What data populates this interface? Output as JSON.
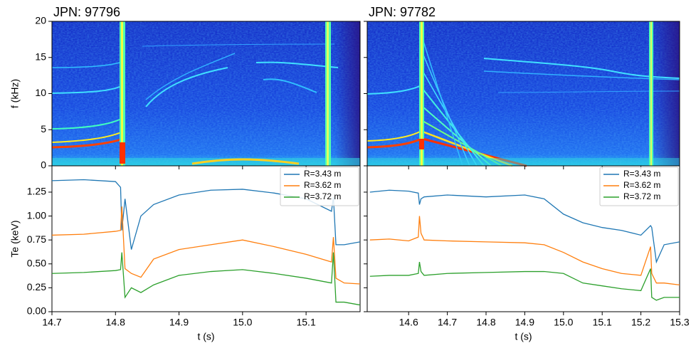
{
  "chart_data": [
    {
      "type": "line",
      "title": "JPN: 97796",
      "xlabel": "t (s)",
      "xlim": [
        14.7,
        15.185
      ],
      "xticks": [
        14.7,
        14.8,
        14.9,
        {
          "value": 15,
          "label": "15.0"
        },
        15.1
      ],
      "spectrogram": {
        "type": "spectrogram",
        "ylabel": "f (kHz)",
        "ylim": [
          0,
          20
        ],
        "yticks": [
          0,
          5,
          10,
          15,
          20
        ],
        "show_ytick_labels": true
      },
      "ylabel": "Te (keV)",
      "ylim": [
        0,
        1.525
      ],
      "show_ytick_labels": true,
      "yticks": [
        {
          "value": 0,
          "label": "0.00"
        },
        {
          "value": 0.25,
          "label": "0.25"
        },
        {
          "value": 0.5,
          "label": "0.50"
        },
        {
          "value": 0.75,
          "label": "0.75"
        },
        {
          "value": 1,
          "label": "1.00"
        },
        {
          "value": 1.25,
          "label": "1.25"
        }
      ],
      "legend": "upper right",
      "x": [
        14.7,
        14.75,
        14.8,
        14.808,
        14.81,
        14.815,
        14.825,
        14.84,
        14.86,
        14.9,
        14.95,
        15.0,
        15.05,
        15.1,
        15.14,
        15.143,
        15.147,
        15.16,
        15.185
      ],
      "series": [
        {
          "name": "R=3.43 m",
          "color": "#1f77b4",
          "values": [
            1.37,
            1.38,
            1.36,
            1.3,
            0.85,
            1.18,
            0.65,
            1.0,
            1.12,
            1.22,
            1.27,
            1.28,
            1.24,
            1.18,
            1.05,
            1.2,
            0.7,
            0.7,
            0.73
          ]
        },
        {
          "name": "R=3.62 m",
          "color": "#ff7f0e",
          "values": [
            0.8,
            0.81,
            0.84,
            0.85,
            1.1,
            0.45,
            0.4,
            0.36,
            0.55,
            0.65,
            0.7,
            0.75,
            0.68,
            0.6,
            0.52,
            0.78,
            0.35,
            0.3,
            0.29
          ]
        },
        {
          "name": "R=3.72 m",
          "color": "#2ca02c",
          "values": [
            0.4,
            0.41,
            0.43,
            0.44,
            0.62,
            0.15,
            0.25,
            0.2,
            0.28,
            0.38,
            0.42,
            0.44,
            0.4,
            0.35,
            0.3,
            0.62,
            0.1,
            0.1,
            0.07
          ]
        }
      ]
    },
    {
      "type": "line",
      "title": "JPN: 97782",
      "xlabel": "t (s)",
      "xlim": [
        14.493,
        15.3
      ],
      "xticks": [
        14.6,
        14.7,
        14.8,
        14.9,
        {
          "value": 15,
          "label": "15.0"
        },
        15.1,
        15.2,
        15.3
      ],
      "spectrogram": {
        "type": "spectrogram",
        "ylim": [
          0,
          20
        ],
        "yticks": [
          0,
          5,
          10,
          15,
          20
        ],
        "show_ytick_labels": false
      },
      "ylim": [
        0,
        1.525
      ],
      "show_ytick_labels": false,
      "yticks": [
        0,
        0.25,
        0.5,
        0.75,
        1,
        1.25
      ],
      "legend": "upper right",
      "x": [
        14.5,
        14.55,
        14.6,
        14.625,
        14.628,
        14.632,
        14.64,
        14.7,
        14.8,
        14.9,
        14.95,
        15.0,
        15.05,
        15.1,
        15.15,
        15.2,
        15.225,
        15.228,
        15.24,
        15.26,
        15.3
      ],
      "series": [
        {
          "name": "R=3.43 m",
          "color": "#1f77b4",
          "values": [
            1.25,
            1.27,
            1.26,
            1.24,
            1.12,
            1.18,
            1.2,
            1.22,
            1.2,
            1.22,
            1.18,
            1.02,
            0.93,
            0.88,
            0.85,
            0.8,
            0.9,
            0.88,
            0.52,
            0.7,
            0.73
          ]
        },
        {
          "name": "R=3.62 m",
          "color": "#ff7f0e",
          "values": [
            0.75,
            0.76,
            0.74,
            0.78,
            1.0,
            0.82,
            0.75,
            0.74,
            0.73,
            0.72,
            0.7,
            0.62,
            0.52,
            0.45,
            0.4,
            0.38,
            0.68,
            0.4,
            0.3,
            0.3,
            0.28
          ]
        },
        {
          "name": "R=3.72 m",
          "color": "#2ca02c",
          "values": [
            0.37,
            0.38,
            0.38,
            0.4,
            0.52,
            0.42,
            0.38,
            0.4,
            0.41,
            0.42,
            0.42,
            0.4,
            0.3,
            0.27,
            0.24,
            0.22,
            0.45,
            0.15,
            0.12,
            0.15,
            0.15
          ]
        }
      ]
    }
  ]
}
